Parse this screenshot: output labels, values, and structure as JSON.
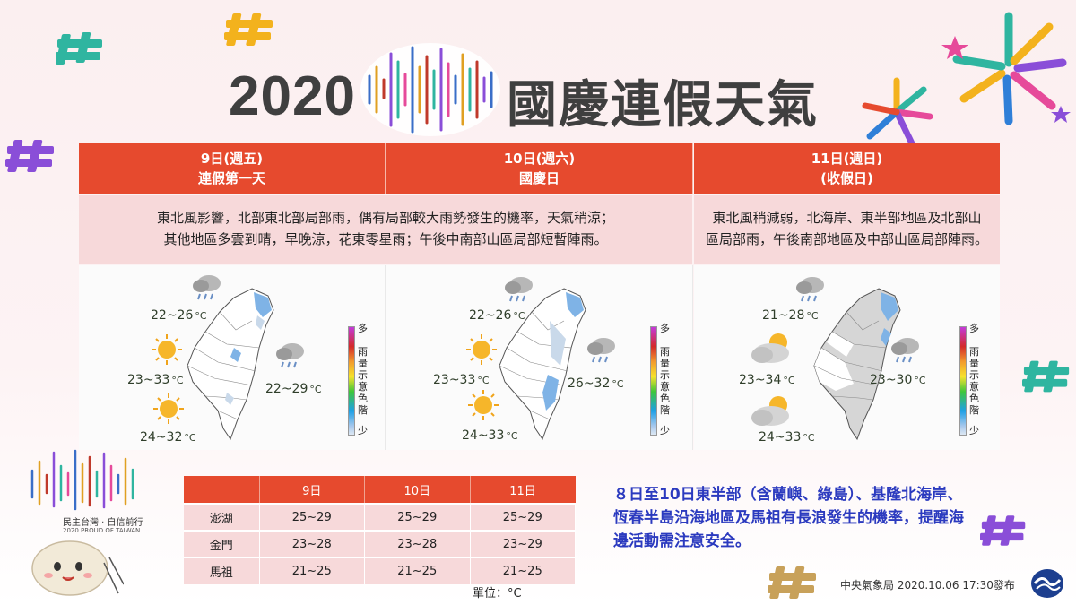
{
  "title": {
    "year": "2020",
    "text": "國慶連假天氣"
  },
  "days": [
    {
      "date": "9日(週五)",
      "subtitle": "連假第一天"
    },
    {
      "date": "10日(週六)",
      "subtitle": "國慶日"
    },
    {
      "date": "11日(週日)",
      "subtitle": "(收假日)"
    }
  ],
  "descriptions": {
    "day1_2": [
      "東北風影響，北部東北部局部雨，偶有局部較大雨勢發生的機率，天氣稍涼；",
      "其他地區多雲到晴，早晚涼，花東零星雨；午後中南部山區局部短暫陣雨。"
    ],
    "day3": [
      "東北風稍減弱，北海岸、東半部地區及北部山",
      "區局部雨，午後南部地區及中部山區局部陣雨。"
    ]
  },
  "maps": [
    {
      "north": "22~26",
      "central": "23~33",
      "east": "22~29",
      "south": "24~32"
    },
    {
      "north": "22~26",
      "central": "23~33",
      "east": "26~32",
      "south": "24~33"
    },
    {
      "north": "21~28",
      "central": "23~34",
      "east": "23~30",
      "south": "24~33"
    }
  ],
  "temp_unit": "°C",
  "legend": {
    "top": "多",
    "middle": "雨量示意色階",
    "bottom": "少"
  },
  "table": {
    "headers": [
      "",
      "9日",
      "10日",
      "11日"
    ],
    "rows": [
      [
        "澎湖",
        "25~29",
        "25~29",
        "25~29"
      ],
      [
        "金門",
        "23~28",
        "23~28",
        "23~29"
      ],
      [
        "馬祖",
        "21~25",
        "21~25",
        "21~25"
      ]
    ],
    "unit_note": "單位：°C"
  },
  "notice": "８日至10日東半部（含蘭嶼、綠島）、基隆北海岸、恆春半島沿海地區及馬祖有長浪發生的機率，提醒海邊活動需注意安全。",
  "footer": "中央氣象局 2020.10.06  17:30發布",
  "badge": {
    "line1": "民主台灣 · 自信前行",
    "line2": "2020 PROUD OF TAIWAN"
  },
  "colors": {
    "header_red": "#e64a2e",
    "desc_pink": "#f7d9da",
    "notice_blue": "#2b3abf",
    "title_gray": "#3f3f3f"
  },
  "icons": [
    "sun-icon",
    "cloud-rain-icon",
    "partly-cloudy-icon",
    "hash-decoration-icon",
    "firework-icon",
    "cwb-logo-icon"
  ]
}
